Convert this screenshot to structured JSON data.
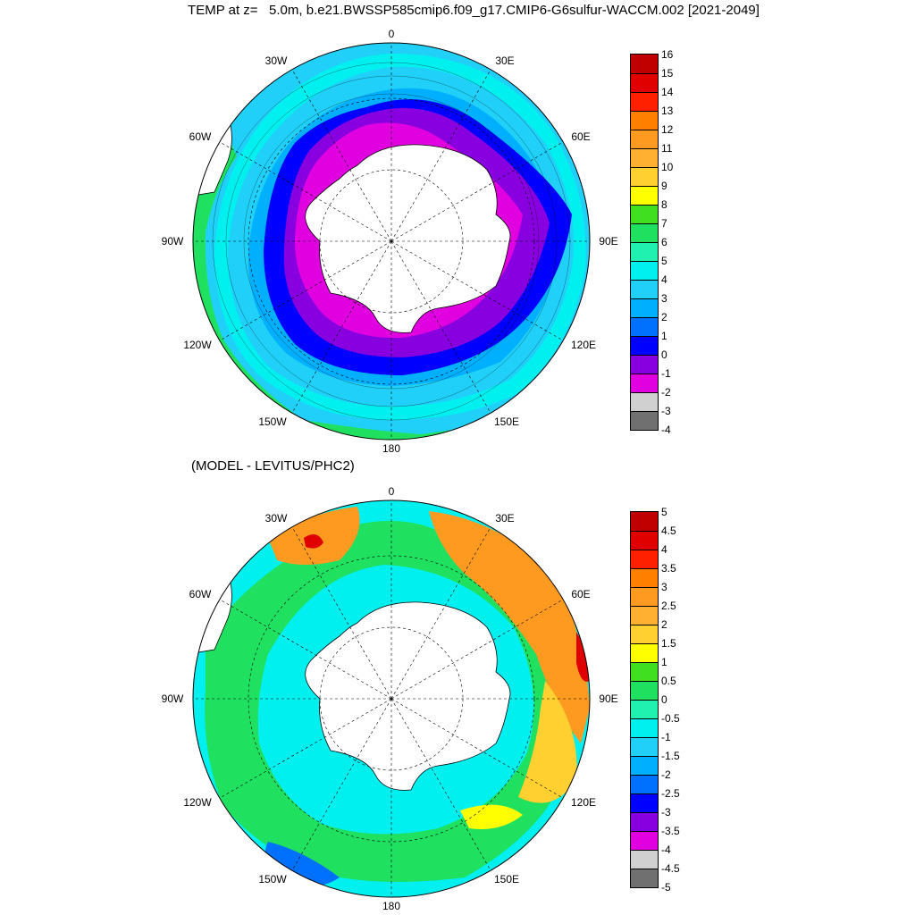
{
  "title": "TEMP at z=   5.0m, b.e21.BWSSP585cmip6.f09_g17.CMIP6-G6sulfur-WACCM.002 [2021-2049]",
  "subtitle": "(MODEL - LEVITUS/PHC2)",
  "longitude_labels": [
    "0",
    "30E",
    "60E",
    "90E",
    "120E",
    "150E",
    "180",
    "150W",
    "120W",
    "90W",
    "60W",
    "30W"
  ],
  "maps": [
    {
      "name": "model-temperature",
      "colorbar": {
        "labels": [
          "16",
          "15",
          "14",
          "13",
          "12",
          "11",
          "10",
          "9",
          "8",
          "7",
          "6",
          "5",
          "4",
          "3",
          "2",
          "1",
          "0",
          "-1",
          "-2",
          "-3",
          "-4"
        ],
        "colors": [
          "#c00000",
          "#e00000",
          "#ff2000",
          "#ff8000",
          "#ff9a20",
          "#ffb030",
          "#ffd030",
          "#ffff00",
          "#40e020",
          "#20e060",
          "#20f0b0",
          "#00f0f0",
          "#20d0f8",
          "#00b0ff",
          "#0070ff",
          "#0000ff",
          "#8800e0",
          "#e000e0",
          "#d0d0d0",
          "#707070"
        ]
      }
    },
    {
      "name": "model-minus-levitus",
      "colorbar": {
        "labels": [
          "5",
          "4.5",
          "4",
          "3.5",
          "3",
          "2.5",
          "2",
          "1.5",
          "1",
          "0.5",
          "0",
          "-0.5",
          "-1",
          "-1.5",
          "-2",
          "-2.5",
          "-3",
          "-3.5",
          "-4",
          "-4.5",
          "-5"
        ],
        "colors": [
          "#c00000",
          "#e00000",
          "#ff2000",
          "#ff8000",
          "#ff9a20",
          "#ffb030",
          "#ffd030",
          "#ffff00",
          "#40e020",
          "#20e060",
          "#20f0b0",
          "#00f0f0",
          "#20d0f8",
          "#00b0ff",
          "#0070ff",
          "#0000ff",
          "#8800e0",
          "#e000e0",
          "#d0d0d0",
          "#707070"
        ]
      }
    }
  ]
}
